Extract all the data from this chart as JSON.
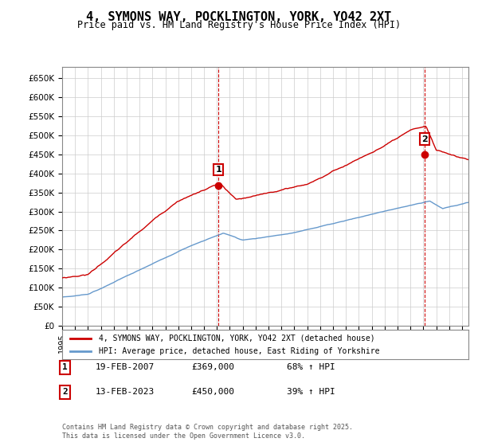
{
  "title": "4, SYMONS WAY, POCKLINGTON, YORK, YO42 2XT",
  "subtitle": "Price paid vs. HM Land Registry's House Price Index (HPI)",
  "legend_label_red": "4, SYMONS WAY, POCKLINGTON, YORK, YO42 2XT (detached house)",
  "legend_label_blue": "HPI: Average price, detached house, East Riding of Yorkshire",
  "annotation1_label": "1",
  "annotation1_date": "19-FEB-2007",
  "annotation1_price": "£369,000",
  "annotation1_hpi": "68% ↑ HPI",
  "annotation2_label": "2",
  "annotation2_date": "13-FEB-2023",
  "annotation2_price": "£450,000",
  "annotation2_hpi": "39% ↑ HPI",
  "footer": "Contains HM Land Registry data © Crown copyright and database right 2025.\nThis data is licensed under the Open Government Licence v3.0.",
  "xlim_start": 1995.0,
  "xlim_end": 2026.5,
  "ylim_min": 0,
  "ylim_max": 680000,
  "purchase1_year": 2007.12,
  "purchase1_price": 369000,
  "purchase2_year": 2023.12,
  "purchase2_price": 450000,
  "vline1_year": 2007.12,
  "vline2_year": 2023.12,
  "red_color": "#cc0000",
  "blue_color": "#6699cc",
  "vline_color": "#cc0000",
  "grid_color": "#cccccc",
  "background_color": "#ffffff"
}
